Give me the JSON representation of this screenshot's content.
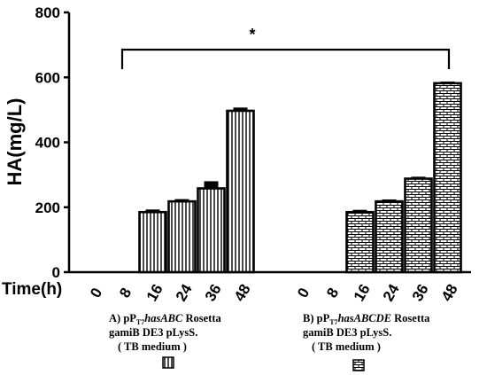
{
  "chart_data": {
    "type": "bar",
    "ylabel": "HA(mg/L)",
    "xlabel": "Time(h)",
    "ylim": [
      0,
      800
    ],
    "yticks": [
      0,
      200,
      400,
      600,
      800
    ],
    "groups": [
      {
        "categories": [
          "0",
          "8",
          "16",
          "24",
          "36",
          "48"
        ],
        "values": [
          0,
          0,
          185,
          218,
          258,
          497
        ],
        "errors": [
          0,
          0,
          8,
          7,
          22,
          10
        ],
        "pattern": "vertical-lines",
        "caption": [
          {
            "segments": [
              {
                "text": "A)  pP",
                "style": "normal"
              },
              {
                "text": "T7",
                "style": "sub"
              },
              {
                "text": "hasABC",
                "style": "italic"
              },
              {
                "text": "  Rosetta",
                "style": "normal"
              }
            ]
          },
          {
            "segments": [
              {
                "text": "gamiB DE3 pLysS.",
                "style": "normal"
              }
            ]
          },
          {
            "segments": [
              {
                "text": "( TB medium )",
                "style": "normal"
              }
            ]
          }
        ]
      },
      {
        "categories": [
          "0",
          "8",
          "16",
          "24",
          "36",
          "48"
        ],
        "values": [
          0,
          0,
          185,
          218,
          288,
          582
        ],
        "errors": [
          0,
          0,
          7,
          6,
          6,
          5
        ],
        "pattern": "brick",
        "caption": [
          {
            "segments": [
              {
                "text": "B) pP",
                "style": "normal"
              },
              {
                "text": "T7",
                "style": "sub"
              },
              {
                "text": "hasABCDE",
                "style": "italic"
              },
              {
                "text": " Rosetta",
                "style": "normal"
              }
            ]
          },
          {
            "segments": [
              {
                "text": "gamiB DE3 pLysS.",
                "style": "normal"
              }
            ]
          },
          {
            "segments": [
              {
                "text": "( TB medium )",
                "style": "normal"
              }
            ]
          }
        ]
      }
    ],
    "annotations": [
      {
        "type": "significance-bracket",
        "text": "*",
        "from": "A-8",
        "to": "B-48"
      }
    ]
  }
}
